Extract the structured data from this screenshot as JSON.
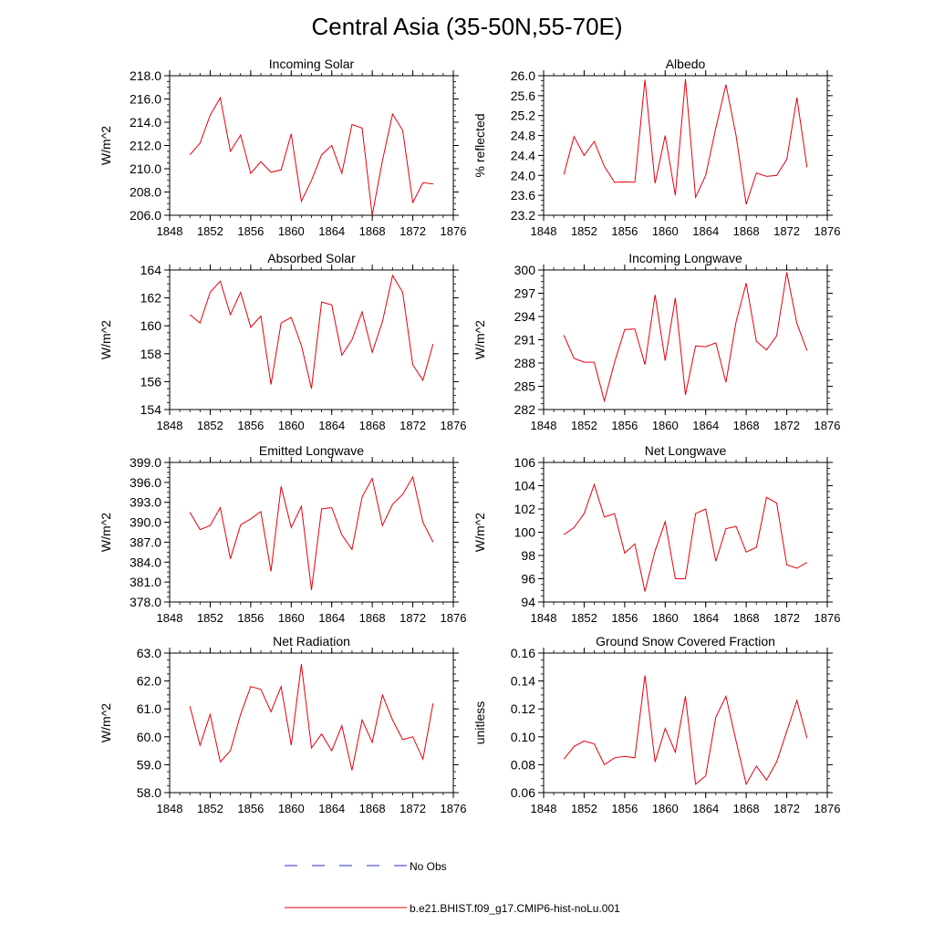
{
  "page_title": "Central Asia (35-50N,55-70E)",
  "colors": {
    "model": "#e8000b",
    "obs": "#2b2bd6",
    "axis": "#000000"
  },
  "legend": [
    {
      "label": "No Obs",
      "style": "dashed",
      "color": "#2b2bd6"
    },
    {
      "label": "b.e21.BHIST.f09_g17.CMIP6-hist-noLu.001",
      "style": "solid",
      "color": "#e8000b"
    }
  ],
  "chart_data": [
    {
      "type": "line",
      "title": "Incoming Solar",
      "ylabel": "W/m^2",
      "xlim": [
        1848,
        1876
      ],
      "xticks": [
        "1848",
        "1852",
        "1856",
        "1860",
        "1864",
        "1868",
        "1872",
        "1876"
      ],
      "ylim": [
        206,
        218
      ],
      "yticks": [
        "206.0",
        "208.0",
        "210.0",
        "212.0",
        "214.0",
        "216.0",
        "218.0"
      ],
      "x": [
        1850,
        1851,
        1852,
        1853,
        1854,
        1855,
        1856,
        1857,
        1858,
        1859,
        1860,
        1861,
        1862,
        1863,
        1864,
        1865,
        1866,
        1867,
        1868,
        1869,
        1870,
        1871,
        1872,
        1873,
        1874
      ],
      "series": [
        {
          "values": [
            211.2,
            212.2,
            214.6,
            216.1,
            211.5,
            212.9,
            209.6,
            210.6,
            209.7,
            209.9,
            213.0,
            207.2,
            209.0,
            211.2,
            212.0,
            209.6,
            213.8,
            213.5,
            206.0,
            210.7,
            214.7,
            213.3,
            207.1,
            208.8,
            208.7
          ]
        }
      ]
    },
    {
      "type": "line",
      "title": "Albedo",
      "ylabel": "% reflected",
      "xlim": [
        1848,
        1876
      ],
      "xticks": [
        "1848",
        "1852",
        "1856",
        "1860",
        "1864",
        "1868",
        "1872",
        "1876"
      ],
      "ylim": [
        23.2,
        26.0
      ],
      "yticks": [
        "23.2",
        "23.6",
        "24.0",
        "24.4",
        "24.8",
        "25.2",
        "25.6",
        "26.0"
      ],
      "x": [
        1850,
        1851,
        1852,
        1853,
        1854,
        1855,
        1856,
        1857,
        1858,
        1859,
        1860,
        1861,
        1862,
        1863,
        1864,
        1865,
        1866,
        1867,
        1868,
        1869,
        1870,
        1871,
        1872,
        1873,
        1874
      ],
      "series": [
        {
          "values": [
            24.02,
            24.78,
            24.4,
            24.68,
            24.18,
            23.86,
            23.87,
            23.86,
            25.92,
            23.84,
            24.8,
            23.6,
            25.93,
            23.56,
            24.0,
            24.95,
            25.82,
            24.8,
            23.42,
            24.05,
            23.98,
            24.0,
            24.32,
            25.56,
            24.16
          ]
        }
      ]
    },
    {
      "type": "line",
      "title": "Absorbed Solar",
      "ylabel": "W/m^2",
      "xlim": [
        1848,
        1876
      ],
      "xticks": [
        "1848",
        "1852",
        "1856",
        "1860",
        "1864",
        "1868",
        "1872",
        "1876"
      ],
      "ylim": [
        154,
        164
      ],
      "yticks": [
        "154",
        "156",
        "158",
        "160",
        "162",
        "164"
      ],
      "x": [
        1850,
        1851,
        1852,
        1853,
        1854,
        1855,
        1856,
        1857,
        1858,
        1859,
        1860,
        1861,
        1862,
        1863,
        1864,
        1865,
        1866,
        1867,
        1868,
        1869,
        1870,
        1871,
        1872,
        1873,
        1874
      ],
      "series": [
        {
          "values": [
            160.8,
            160.2,
            162.4,
            163.2,
            160.8,
            162.4,
            159.9,
            160.7,
            155.8,
            160.2,
            160.6,
            158.6,
            155.5,
            161.7,
            161.5,
            157.9,
            159.0,
            161.0,
            158.1,
            160.3,
            163.6,
            162.4,
            157.2,
            156.1,
            158.7
          ]
        }
      ]
    },
    {
      "type": "line",
      "title": "Incoming Longwave",
      "ylabel": "W/m^2",
      "xlim": [
        1848,
        1876
      ],
      "xticks": [
        "1848",
        "1852",
        "1856",
        "1860",
        "1864",
        "1868",
        "1872",
        "1876"
      ],
      "ylim": [
        282,
        300
      ],
      "yticks": [
        "282",
        "285",
        "288",
        "291",
        "294",
        "297",
        "300"
      ],
      "x": [
        1850,
        1851,
        1852,
        1853,
        1854,
        1855,
        1856,
        1857,
        1858,
        1859,
        1860,
        1861,
        1862,
        1863,
        1864,
        1865,
        1866,
        1867,
        1868,
        1869,
        1870,
        1871,
        1872,
        1873,
        1874
      ],
      "series": [
        {
          "values": [
            291.6,
            288.6,
            288.1,
            288.1,
            283.1,
            288.1,
            292.3,
            292.4,
            287.8,
            296.8,
            288.3,
            296.4,
            283.9,
            290.2,
            290.1,
            290.6,
            285.5,
            293.3,
            298.3,
            290.8,
            289.7,
            291.5,
            299.7,
            293.1,
            289.6
          ]
        }
      ]
    },
    {
      "type": "line",
      "title": "Emitted Longwave",
      "ylabel": "W/m^2",
      "xlim": [
        1848,
        1876
      ],
      "xticks": [
        "1848",
        "1852",
        "1856",
        "1860",
        "1864",
        "1868",
        "1872",
        "1876"
      ],
      "ylim": [
        378,
        399
      ],
      "yticks": [
        "378.0",
        "381.0",
        "384.0",
        "387.0",
        "390.0",
        "393.0",
        "396.0",
        "399.0"
      ],
      "x": [
        1850,
        1851,
        1852,
        1853,
        1854,
        1855,
        1856,
        1857,
        1858,
        1859,
        1860,
        1861,
        1862,
        1863,
        1864,
        1865,
        1866,
        1867,
        1868,
        1869,
        1870,
        1871,
        1872,
        1873,
        1874
      ],
      "series": [
        {
          "values": [
            391.5,
            388.9,
            389.5,
            392.2,
            384.5,
            389.6,
            390.5,
            391.6,
            382.6,
            395.4,
            389.2,
            392.4,
            379.8,
            392.0,
            392.2,
            388.1,
            385.9,
            393.8,
            396.6,
            389.5,
            392.7,
            394.2,
            396.8,
            390.0,
            387.0
          ]
        }
      ]
    },
    {
      "type": "line",
      "title": "Net Longwave",
      "ylabel": "W/m^2",
      "xlim": [
        1848,
        1876
      ],
      "xticks": [
        "1848",
        "1852",
        "1856",
        "1860",
        "1864",
        "1868",
        "1872",
        "1876"
      ],
      "ylim": [
        94,
        106
      ],
      "yticks": [
        "94",
        "96",
        "98",
        "100",
        "102",
        "104",
        "106"
      ],
      "x": [
        1850,
        1851,
        1852,
        1853,
        1854,
        1855,
        1856,
        1857,
        1858,
        1859,
        1860,
        1861,
        1862,
        1863,
        1864,
        1865,
        1866,
        1867,
        1868,
        1869,
        1870,
        1871,
        1872,
        1873,
        1874
      ],
      "series": [
        {
          "values": [
            99.8,
            100.4,
            101.6,
            104.1,
            101.3,
            101.6,
            98.2,
            99.0,
            94.9,
            98.4,
            100.9,
            96.0,
            96.0,
            101.6,
            102.0,
            97.5,
            100.3,
            100.5,
            98.3,
            98.7,
            103.0,
            102.5,
            97.2,
            96.9,
            97.4
          ]
        }
      ]
    },
    {
      "type": "line",
      "title": "Net Radiation",
      "ylabel": "W/m^2",
      "xlim": [
        1848,
        1876
      ],
      "xticks": [
        "1848",
        "1852",
        "1856",
        "1860",
        "1864",
        "1868",
        "1872",
        "1876"
      ],
      "ylim": [
        58,
        63
      ],
      "yticks": [
        "58.0",
        "59.0",
        "60.0",
        "61.0",
        "62.0",
        "63.0"
      ],
      "x": [
        1850,
        1851,
        1852,
        1853,
        1854,
        1855,
        1856,
        1857,
        1858,
        1859,
        1860,
        1861,
        1862,
        1863,
        1864,
        1865,
        1866,
        1867,
        1868,
        1869,
        1870,
        1871,
        1872,
        1873,
        1874
      ],
      "series": [
        {
          "values": [
            61.1,
            59.7,
            60.8,
            59.1,
            59.5,
            60.8,
            61.8,
            61.7,
            60.9,
            61.8,
            59.7,
            62.6,
            59.6,
            60.1,
            59.5,
            60.4,
            58.8,
            60.6,
            59.8,
            61.5,
            60.6,
            59.9,
            60.0,
            59.2,
            61.2
          ]
        }
      ]
    },
    {
      "type": "line",
      "title": "Ground Snow Covered Fraction",
      "ylabel": "unitless",
      "xlim": [
        1848,
        1876
      ],
      "xticks": [
        "1848",
        "1852",
        "1856",
        "1860",
        "1864",
        "1868",
        "1872",
        "1876"
      ],
      "ylim": [
        0.06,
        0.16
      ],
      "yticks": [
        "0.06",
        "0.08",
        "0.10",
        "0.12",
        "0.14",
        "0.16"
      ],
      "x": [
        1850,
        1851,
        1852,
        1853,
        1854,
        1855,
        1856,
        1857,
        1858,
        1859,
        1860,
        1861,
        1862,
        1863,
        1864,
        1865,
        1866,
        1867,
        1868,
        1869,
        1870,
        1871,
        1872,
        1873,
        1874
      ],
      "series": [
        {
          "values": [
            0.084,
            0.093,
            0.097,
            0.095,
            0.08,
            0.085,
            0.086,
            0.085,
            0.144,
            0.082,
            0.106,
            0.089,
            0.129,
            0.066,
            0.072,
            0.114,
            0.129,
            0.097,
            0.066,
            0.079,
            0.069,
            0.082,
            0.104,
            0.126,
            0.099
          ]
        }
      ]
    }
  ]
}
